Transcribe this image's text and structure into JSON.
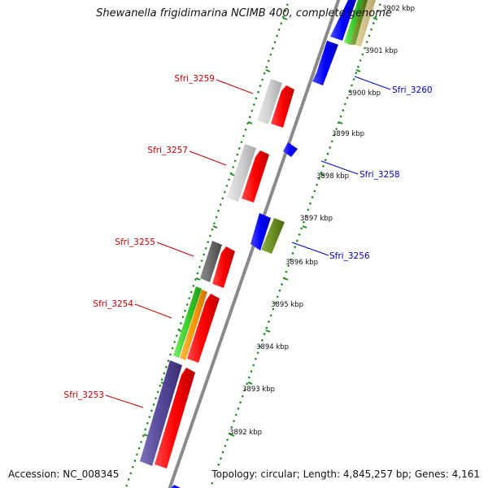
{
  "title": "Shewanella frigidimarina NCIMB 400, complete genome",
  "footer": {
    "accession": "Accession: NC_008345",
    "topology": "Topology: circular; Length: 4,845,257 bp; Genes: 4,161"
  },
  "colors": {
    "forward_label": "#cc0000",
    "reverse_label": "#0000cc",
    "backbone": "#8a8a8a",
    "tick": "#1a8a1a"
  },
  "gene_labels": [
    {
      "text": "Sfri_3259",
      "strand": "forward"
    },
    {
      "text": "Sfri_3257",
      "strand": "forward"
    },
    {
      "text": "Sfri_3255",
      "strand": "forward"
    },
    {
      "text": "Sfri_3254",
      "strand": "forward"
    },
    {
      "text": "Sfri_3253",
      "strand": "forward"
    },
    {
      "text": "Sfri_3260",
      "strand": "reverse"
    },
    {
      "text": "Sfri_3258",
      "strand": "reverse"
    },
    {
      "text": "Sfri_3256",
      "strand": "reverse"
    }
  ],
  "kbp_labels": [
    "3902 kbp",
    "3901 kbp",
    "3900 kbp",
    "3899 kbp",
    "3898 kbp",
    "3897 kbp",
    "3896 kbp",
    "3895 kbp",
    "3894 kbp",
    "3893 kbp",
    "3892 kbp"
  ]
}
